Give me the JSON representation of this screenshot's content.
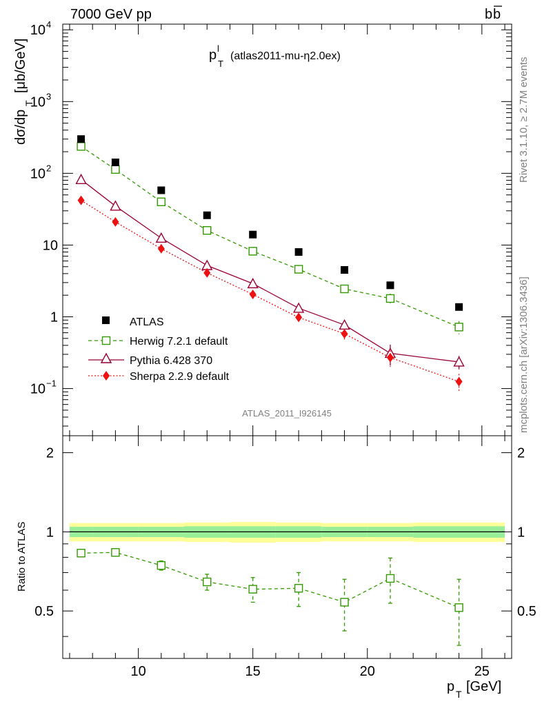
{
  "header": {
    "beam": "7000 GeV pp",
    "process_main": "b",
    "process_bar": "b"
  },
  "side": {
    "rivet": "Rivet 3.1.10, ≥ 2.7M events",
    "mcplots": "mcplots.cern.ch [arXiv:1306.3436]"
  },
  "chart_data": [
    {
      "panel": "main",
      "type": "scatter",
      "title_main": "p",
      "title_sup": "l",
      "title_sub": "T",
      "title_note": "(atlas2011-mu-η2.0ex)",
      "ylabel_main": "dσ/dp",
      "ylabel_sub": "T",
      "ylabel_unit": "[μb/GeV]",
      "ylog": true,
      "ylim": [
        0.022,
        12000
      ],
      "xlim": [
        6.7,
        26.3
      ],
      "yticks": [
        {
          "value": 10000,
          "base": "10",
          "exp": "4"
        },
        {
          "value": 1000,
          "base": "10",
          "exp": "3"
        },
        {
          "value": 100,
          "base": "10",
          "exp": "2"
        },
        {
          "value": 10,
          "base": "10",
          "exp": ""
        },
        {
          "value": 1,
          "base": "1",
          "exp": ""
        },
        {
          "value": 0.1,
          "base": "10",
          "exp": "−1"
        }
      ],
      "analysis_id": "ATLAS_2011_I926145",
      "x": [
        7.5,
        9,
        11,
        13,
        15,
        17,
        19,
        21,
        24
      ],
      "series": [
        {
          "name": "ATLAS",
          "style": "data",
          "color": "#000000",
          "values": [
            300,
            142,
            58,
            26,
            14,
            8.0,
            4.5,
            2.75,
            1.37
          ]
        },
        {
          "name": "Herwig 7.2.1 default",
          "style": "square",
          "color": "#339900",
          "dash": "5,4",
          "values": [
            237,
            113,
            40,
            16,
            8.2,
            4.6,
            2.45,
            1.8,
            0.72
          ],
          "err": [
            8,
            4,
            1.5,
            0.8,
            0.5,
            0.4,
            0.3,
            0.3,
            0.15
          ]
        },
        {
          "name": "Pythia 6.428 370",
          "style": "triangle",
          "color": "#990033",
          "dash": "",
          "values": [
            82,
            35,
            12.5,
            5.2,
            2.9,
            1.32,
            0.77,
            0.31,
            0.235
          ],
          "err": [
            3,
            1.5,
            0.6,
            0.3,
            0.2,
            0.15,
            0.12,
            0.1,
            0.05
          ]
        },
        {
          "name": "Sherpa 2.2.9 default",
          "style": "diamond",
          "color": "#ee1111",
          "dash": "2,2.5",
          "values": [
            42,
            21,
            8.9,
            4.1,
            2.05,
            0.98,
            0.58,
            0.27,
            0.125
          ],
          "err": [
            1.5,
            0.8,
            0.4,
            0.25,
            0.15,
            0.12,
            0.1,
            0.07,
            0.035
          ]
        }
      ]
    },
    {
      "panel": "ratio",
      "type": "line",
      "ylabel": "Ratio to ATLAS",
      "xlabel_main": "p",
      "xlabel_sub": "T",
      "xlabel_unit": "[GeV]",
      "xlim": [
        6.7,
        26.3
      ],
      "ylim": [
        0.33,
        2.32
      ],
      "xticks": [
        10,
        15,
        20,
        25
      ],
      "yticks": [
        2,
        1,
        0.5
      ],
      "band_edges": [
        7,
        8,
        10,
        12,
        14,
        16,
        18,
        20,
        22,
        26
      ],
      "band_yellow": [
        0.08,
        0.08,
        0.08,
        0.085,
        0.09,
        0.085,
        0.08,
        0.08,
        0.085
      ],
      "band_green": [
        0.045,
        0.045,
        0.045,
        0.05,
        0.05,
        0.05,
        0.045,
        0.045,
        0.05
      ],
      "x": [
        7.5,
        9,
        11,
        13,
        15,
        17,
        19,
        21,
        24
      ],
      "series": [
        {
          "name": "Herwig 7.2.1 default",
          "color": "#339900",
          "values": [
            0.83,
            0.835,
            0.745,
            0.645,
            0.605,
            0.61,
            0.54,
            0.665,
            0.515
          ],
          "err": [
            0.015,
            0.015,
            0.03,
            0.045,
            0.065,
            0.09,
            0.12,
            0.13,
            0.145
          ]
        }
      ]
    }
  ]
}
